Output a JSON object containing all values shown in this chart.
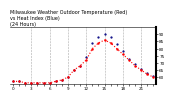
{
  "title": "Milwaukee Weather Outdoor Temperature (Red)\nvs Heat Index (Blue)\n(24 Hours)",
  "title_fontsize": 3.5,
  "background_color": "#ffffff",
  "line_color": "#ff0000",
  "line_color2": "#000080",
  "ylim": [
    55,
    95
  ],
  "ytick_values": [
    60,
    65,
    70,
    75,
    80,
    85,
    90
  ],
  "hours": [
    0,
    1,
    2,
    3,
    4,
    5,
    6,
    7,
    8,
    9,
    10,
    11,
    12,
    13,
    14,
    15,
    16,
    17,
    18,
    19,
    20,
    21,
    22,
    23
  ],
  "temp": [
    57,
    57,
    56,
    56,
    56,
    56,
    56,
    57,
    58,
    60,
    65,
    68,
    72,
    80,
    84,
    86,
    84,
    80,
    76,
    72,
    68,
    65,
    62,
    60
  ],
  "heat_index": [
    57,
    57,
    56,
    56,
    56,
    56,
    56,
    57,
    58,
    60,
    65,
    68,
    74,
    84,
    88,
    90,
    88,
    83,
    78,
    73,
    69,
    66,
    63,
    61
  ],
  "grid_color": "#aaaaaa",
  "grid_hours": [
    3,
    6,
    9,
    12,
    15,
    18,
    21
  ],
  "tick_fontsize": 3.0,
  "xtick_hours": [
    0,
    1,
    2,
    3,
    4,
    5,
    6,
    7,
    8,
    9,
    10,
    11,
    12,
    13,
    14,
    15,
    16,
    17,
    18,
    19,
    20,
    21,
    22,
    23
  ],
  "xtick_labels": [
    "0",
    "",
    "",
    "3",
    "",
    "",
    "6",
    "",
    "",
    "9",
    "",
    "",
    "12",
    "",
    "",
    "15",
    "",
    "",
    "18",
    "",
    "",
    "21",
    "",
    ""
  ]
}
